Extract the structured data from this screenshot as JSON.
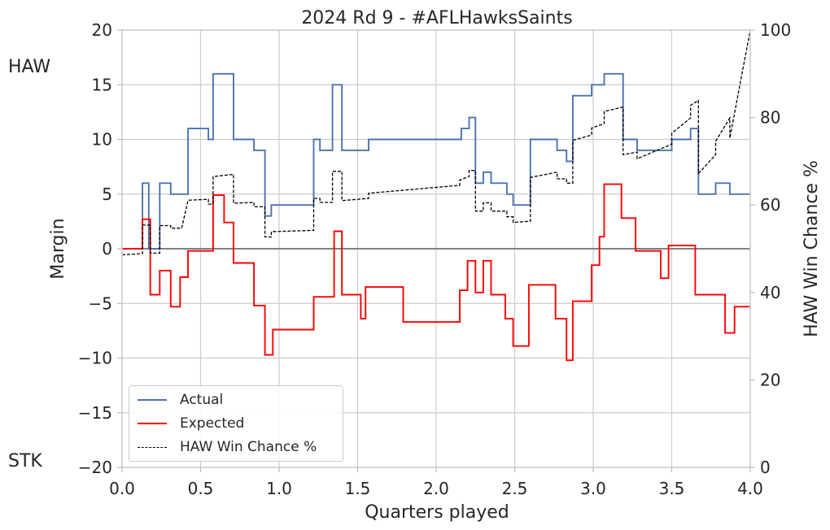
{
  "chart_data": {
    "type": "line",
    "title": "2024 Rd 9 - #AFLHawksSaints",
    "xlabel": "Quarters played",
    "ylabel": "Margin",
    "y2label": "HAW Win Chance %",
    "xlim": [
      0,
      4
    ],
    "ylim": [
      -20,
      20
    ],
    "y2lim": [
      0,
      100
    ],
    "x_ticks": [
      "0.0",
      "0.5",
      "1.0",
      "1.5",
      "2.0",
      "2.5",
      "3.0",
      "3.5",
      "4.0"
    ],
    "y_ticks": [
      "−20",
      "−15",
      "−10",
      "−5",
      "0",
      "5",
      "10",
      "15",
      "20"
    ],
    "y2_ticks": [
      "0",
      "20",
      "40",
      "60",
      "80",
      "100"
    ],
    "top_side_label": "HAW",
    "bottom_side_label": "STK",
    "grid": true,
    "legend_position": "lower-left",
    "series": [
      {
        "name": "Actual",
        "color": "#4c72b0",
        "style": "step",
        "points": [
          [
            0,
            0
          ],
          [
            0.13,
            0
          ],
          [
            0.13,
            6
          ],
          [
            0.17,
            6
          ],
          [
            0.17,
            0
          ],
          [
            0.24,
            0
          ],
          [
            0.24,
            6
          ],
          [
            0.31,
            6
          ],
          [
            0.31,
            5
          ],
          [
            0.42,
            5
          ],
          [
            0.42,
            11
          ],
          [
            0.55,
            11
          ],
          [
            0.55,
            10
          ],
          [
            0.58,
            10
          ],
          [
            0.58,
            16
          ],
          [
            0.71,
            16
          ],
          [
            0.71,
            10
          ],
          [
            0.84,
            10
          ],
          [
            0.84,
            9
          ],
          [
            0.91,
            9
          ],
          [
            0.91,
            3
          ],
          [
            0.95,
            3
          ],
          [
            0.95,
            4
          ],
          [
            1.22,
            4
          ],
          [
            1.22,
            10
          ],
          [
            1.26,
            10
          ],
          [
            1.26,
            9
          ],
          [
            1.34,
            9
          ],
          [
            1.34,
            15
          ],
          [
            1.4,
            15
          ],
          [
            1.4,
            9
          ],
          [
            1.57,
            9
          ],
          [
            1.57,
            10
          ],
          [
            2.16,
            10
          ],
          [
            2.16,
            11
          ],
          [
            2.21,
            11
          ],
          [
            2.21,
            12
          ],
          [
            2.25,
            12
          ],
          [
            2.25,
            6
          ],
          [
            2.3,
            6
          ],
          [
            2.3,
            7
          ],
          [
            2.35,
            7
          ],
          [
            2.35,
            6
          ],
          [
            2.45,
            6
          ],
          [
            2.45,
            5
          ],
          [
            2.49,
            5
          ],
          [
            2.49,
            4
          ],
          [
            2.6,
            4
          ],
          [
            2.6,
            10
          ],
          [
            2.77,
            10
          ],
          [
            2.77,
            9
          ],
          [
            2.83,
            9
          ],
          [
            2.83,
            8
          ],
          [
            2.87,
            8
          ],
          [
            2.87,
            14
          ],
          [
            2.99,
            14
          ],
          [
            2.99,
            15
          ],
          [
            3.07,
            15
          ],
          [
            3.07,
            16
          ],
          [
            3.19,
            16
          ],
          [
            3.19,
            10
          ],
          [
            3.28,
            10
          ],
          [
            3.28,
            9
          ],
          [
            3.5,
            9
          ],
          [
            3.5,
            10
          ],
          [
            3.62,
            10
          ],
          [
            3.62,
            11
          ],
          [
            3.67,
            11
          ],
          [
            3.67,
            5
          ],
          [
            3.78,
            5
          ],
          [
            3.78,
            6
          ],
          [
            3.87,
            6
          ],
          [
            3.87,
            5
          ],
          [
            4,
            5
          ]
        ]
      },
      {
        "name": "Expected",
        "color": "#ff0000",
        "style": "step",
        "points": [
          [
            0,
            0
          ],
          [
            0.13,
            0
          ],
          [
            0.13,
            2.7
          ],
          [
            0.18,
            2.7
          ],
          [
            0.18,
            -4.2
          ],
          [
            0.24,
            -4.2
          ],
          [
            0.24,
            -2
          ],
          [
            0.31,
            -2
          ],
          [
            0.31,
            -5.3
          ],
          [
            0.37,
            -5.3
          ],
          [
            0.37,
            -2.6
          ],
          [
            0.42,
            -2.6
          ],
          [
            0.42,
            -0.2
          ],
          [
            0.58,
            -0.2
          ],
          [
            0.58,
            4.9
          ],
          [
            0.65,
            4.9
          ],
          [
            0.65,
            2.4
          ],
          [
            0.71,
            2.4
          ],
          [
            0.71,
            -1.3
          ],
          [
            0.84,
            -1.3
          ],
          [
            0.84,
            -5.2
          ],
          [
            0.91,
            -5.2
          ],
          [
            0.91,
            -9.7
          ],
          [
            0.96,
            -9.7
          ],
          [
            0.96,
            -7.4
          ],
          [
            1.22,
            -7.4
          ],
          [
            1.22,
            -4.4
          ],
          [
            1.35,
            -4.4
          ],
          [
            1.35,
            1.6
          ],
          [
            1.4,
            1.6
          ],
          [
            1.4,
            -4.2
          ],
          [
            1.52,
            -4.2
          ],
          [
            1.52,
            -6.4
          ],
          [
            1.55,
            -6.4
          ],
          [
            1.55,
            -3.5
          ],
          [
            1.79,
            -3.5
          ],
          [
            1.79,
            -6.7
          ],
          [
            2.15,
            -6.7
          ],
          [
            2.15,
            -3.8
          ],
          [
            2.2,
            -3.8
          ],
          [
            2.2,
            -1.1
          ],
          [
            2.25,
            -1.1
          ],
          [
            2.25,
            -4
          ],
          [
            2.3,
            -4
          ],
          [
            2.3,
            -1.1
          ],
          [
            2.35,
            -1.1
          ],
          [
            2.35,
            -4.2
          ],
          [
            2.44,
            -4.2
          ],
          [
            2.44,
            -6.4
          ],
          [
            2.49,
            -6.4
          ],
          [
            2.49,
            -8.9
          ],
          [
            2.59,
            -8.9
          ],
          [
            2.59,
            -3.3
          ],
          [
            2.76,
            -3.3
          ],
          [
            2.76,
            -6.4
          ],
          [
            2.83,
            -6.4
          ],
          [
            2.83,
            -10.2
          ],
          [
            2.87,
            -10.2
          ],
          [
            2.87,
            -4.8
          ],
          [
            2.99,
            -4.8
          ],
          [
            2.99,
            -1.5
          ],
          [
            3.04,
            -1.5
          ],
          [
            3.04,
            1.1
          ],
          [
            3.07,
            1.1
          ],
          [
            3.07,
            5.9
          ],
          [
            3.18,
            5.9
          ],
          [
            3.18,
            2.8
          ],
          [
            3.27,
            2.8
          ],
          [
            3.27,
            -0.2
          ],
          [
            3.43,
            -0.2
          ],
          [
            3.43,
            -2.7
          ],
          [
            3.48,
            -2.7
          ],
          [
            3.48,
            0.3
          ],
          [
            3.65,
            0.3
          ],
          [
            3.65,
            -4.2
          ],
          [
            3.84,
            -4.2
          ],
          [
            3.84,
            -7.7
          ],
          [
            3.9,
            -7.7
          ],
          [
            3.9,
            -5.3
          ],
          [
            4,
            -5.3
          ]
        ]
      },
      {
        "name": "HAW Win Chance %",
        "color": "#000000",
        "style": "dashed",
        "axis": "right",
        "points": [
          [
            0,
            48.6
          ],
          [
            0.13,
            48.9
          ],
          [
            0.13,
            55.4
          ],
          [
            0.18,
            55.4
          ],
          [
            0.18,
            49
          ],
          [
            0.24,
            49
          ],
          [
            0.24,
            55.3
          ],
          [
            0.31,
            55.3
          ],
          [
            0.31,
            54.7
          ],
          [
            0.38,
            54.7
          ],
          [
            0.42,
            61.1
          ],
          [
            0.55,
            61.3
          ],
          [
            0.55,
            60.2
          ],
          [
            0.58,
            60.2
          ],
          [
            0.58,
            66.5
          ],
          [
            0.71,
            67
          ],
          [
            0.71,
            60.4
          ],
          [
            0.84,
            60.6
          ],
          [
            0.84,
            59.6
          ],
          [
            0.91,
            59.6
          ],
          [
            0.91,
            52.7
          ],
          [
            0.95,
            52.7
          ],
          [
            0.95,
            53.9
          ],
          [
            1.22,
            54.2
          ],
          [
            1.22,
            61.5
          ],
          [
            1.26,
            61.5
          ],
          [
            1.26,
            60.6
          ],
          [
            1.34,
            60.6
          ],
          [
            1.34,
            67.7
          ],
          [
            1.4,
            67.7
          ],
          [
            1.4,
            61
          ],
          [
            1.57,
            61.5
          ],
          [
            1.57,
            62.7
          ],
          [
            2.15,
            64.5
          ],
          [
            2.15,
            65.7
          ],
          [
            2.21,
            66.5
          ],
          [
            2.21,
            67.9
          ],
          [
            2.25,
            67.9
          ],
          [
            2.25,
            58.6
          ],
          [
            2.3,
            58.6
          ],
          [
            2.3,
            60.5
          ],
          [
            2.35,
            60.5
          ],
          [
            2.35,
            58.6
          ],
          [
            2.45,
            58.6
          ],
          [
            2.45,
            57.3
          ],
          [
            2.49,
            57.3
          ],
          [
            2.49,
            56
          ],
          [
            2.6,
            56.3
          ],
          [
            2.6,
            66.3
          ],
          [
            2.77,
            67.5
          ],
          [
            2.77,
            66
          ],
          [
            2.83,
            66
          ],
          [
            2.83,
            65
          ],
          [
            2.87,
            65
          ],
          [
            2.87,
            74.8
          ],
          [
            2.99,
            76
          ],
          [
            2.99,
            77.6
          ],
          [
            3.07,
            78.6
          ],
          [
            3.07,
            81.4
          ],
          [
            3.19,
            82.4
          ],
          [
            3.19,
            71.5
          ],
          [
            3.28,
            72.1
          ],
          [
            3.28,
            70.6
          ],
          [
            3.5,
            73.9
          ],
          [
            3.5,
            76.4
          ],
          [
            3.62,
            79.9
          ],
          [
            3.62,
            82.8
          ],
          [
            3.67,
            83.9
          ],
          [
            3.67,
            67.2
          ],
          [
            3.78,
            71.5
          ],
          [
            3.78,
            74.6
          ],
          [
            3.87,
            79.9
          ],
          [
            3.87,
            75.3
          ],
          [
            4,
            100
          ]
        ]
      }
    ]
  }
}
